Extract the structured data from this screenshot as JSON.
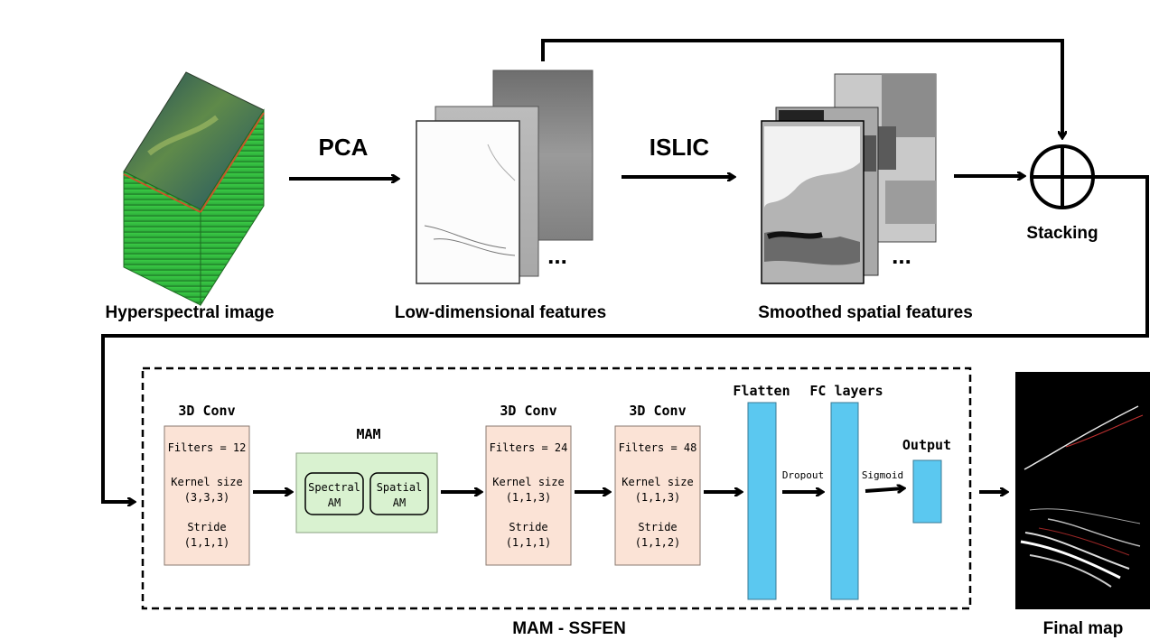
{
  "top": {
    "hyperspectral_label": "Hyperspectral image",
    "pca_label": "PCA",
    "low_dim_label": "Low-dimensional features",
    "islic_label": "ISLIC",
    "smoothed_label": "Smoothed spatial features",
    "stacking_label": "Stacking",
    "ellipsis": "..."
  },
  "network": {
    "name": "MAM - SSFEN",
    "conv1": {
      "title": "3D Conv",
      "filters": "Filters = 12",
      "kernel_label": "Kernel size",
      "kernel": "(3,3,3)",
      "stride_label": "Stride",
      "stride": "(1,1,1)"
    },
    "mam": {
      "title": "MAM",
      "spectral_l1": "Spectral",
      "spectral_l2": "AM",
      "spatial_l1": "Spatial",
      "spatial_l2": "AM"
    },
    "conv2": {
      "title": "3D Conv",
      "filters": "Filters = 24",
      "kernel_label": "Kernel size",
      "kernel": "(1,1,3)",
      "stride_label": "Stride",
      "stride": "(1,1,1)"
    },
    "conv3": {
      "title": "3D Conv",
      "filters": "Filters = 48",
      "kernel_label": "Kernel size",
      "kernel": "(1,1,3)",
      "stride_label": "Stride",
      "stride": "(1,1,2)"
    },
    "flatten_label": "Flatten",
    "fc_label": "FC layers",
    "dropout_label": "Dropout",
    "sigmoid_label": "Sigmoid",
    "output_label": "Output"
  },
  "final_map_label": "Final map",
  "colors": {
    "conv_fill": "#fbe3d6",
    "mam_fill": "#d9f2d0",
    "layer_blue": "#5bc8f0"
  }
}
